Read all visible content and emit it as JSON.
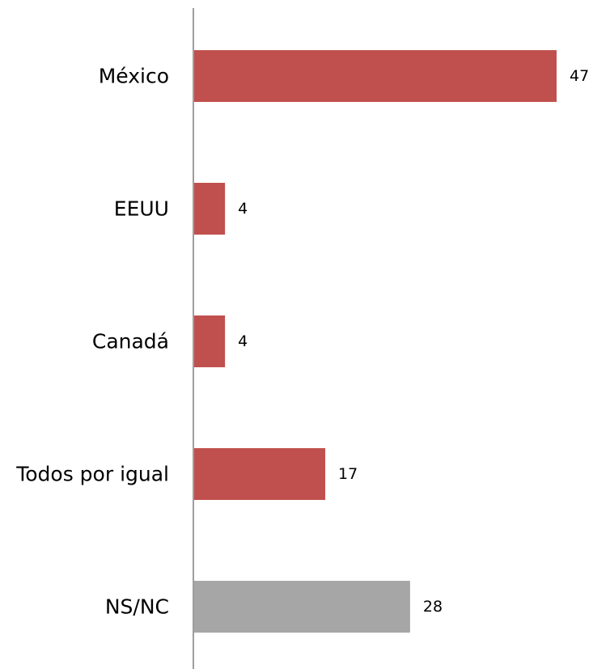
{
  "chart_data": {
    "type": "bar",
    "orientation": "horizontal",
    "categories": [
      "México",
      "EEUU",
      "Canadá",
      "Todos por igual",
      "NS/NC"
    ],
    "values": [
      47,
      4,
      4,
      17,
      28
    ],
    "bar_colors": [
      "#C0504D",
      "#C0504D",
      "#C0504D",
      "#C0504D",
      "#A6A6A6"
    ],
    "data_labels": [
      "47",
      "4",
      "4",
      "17",
      "28"
    ],
    "title": "",
    "xlabel": "",
    "ylabel": "",
    "legend": "none",
    "grid": false
  }
}
